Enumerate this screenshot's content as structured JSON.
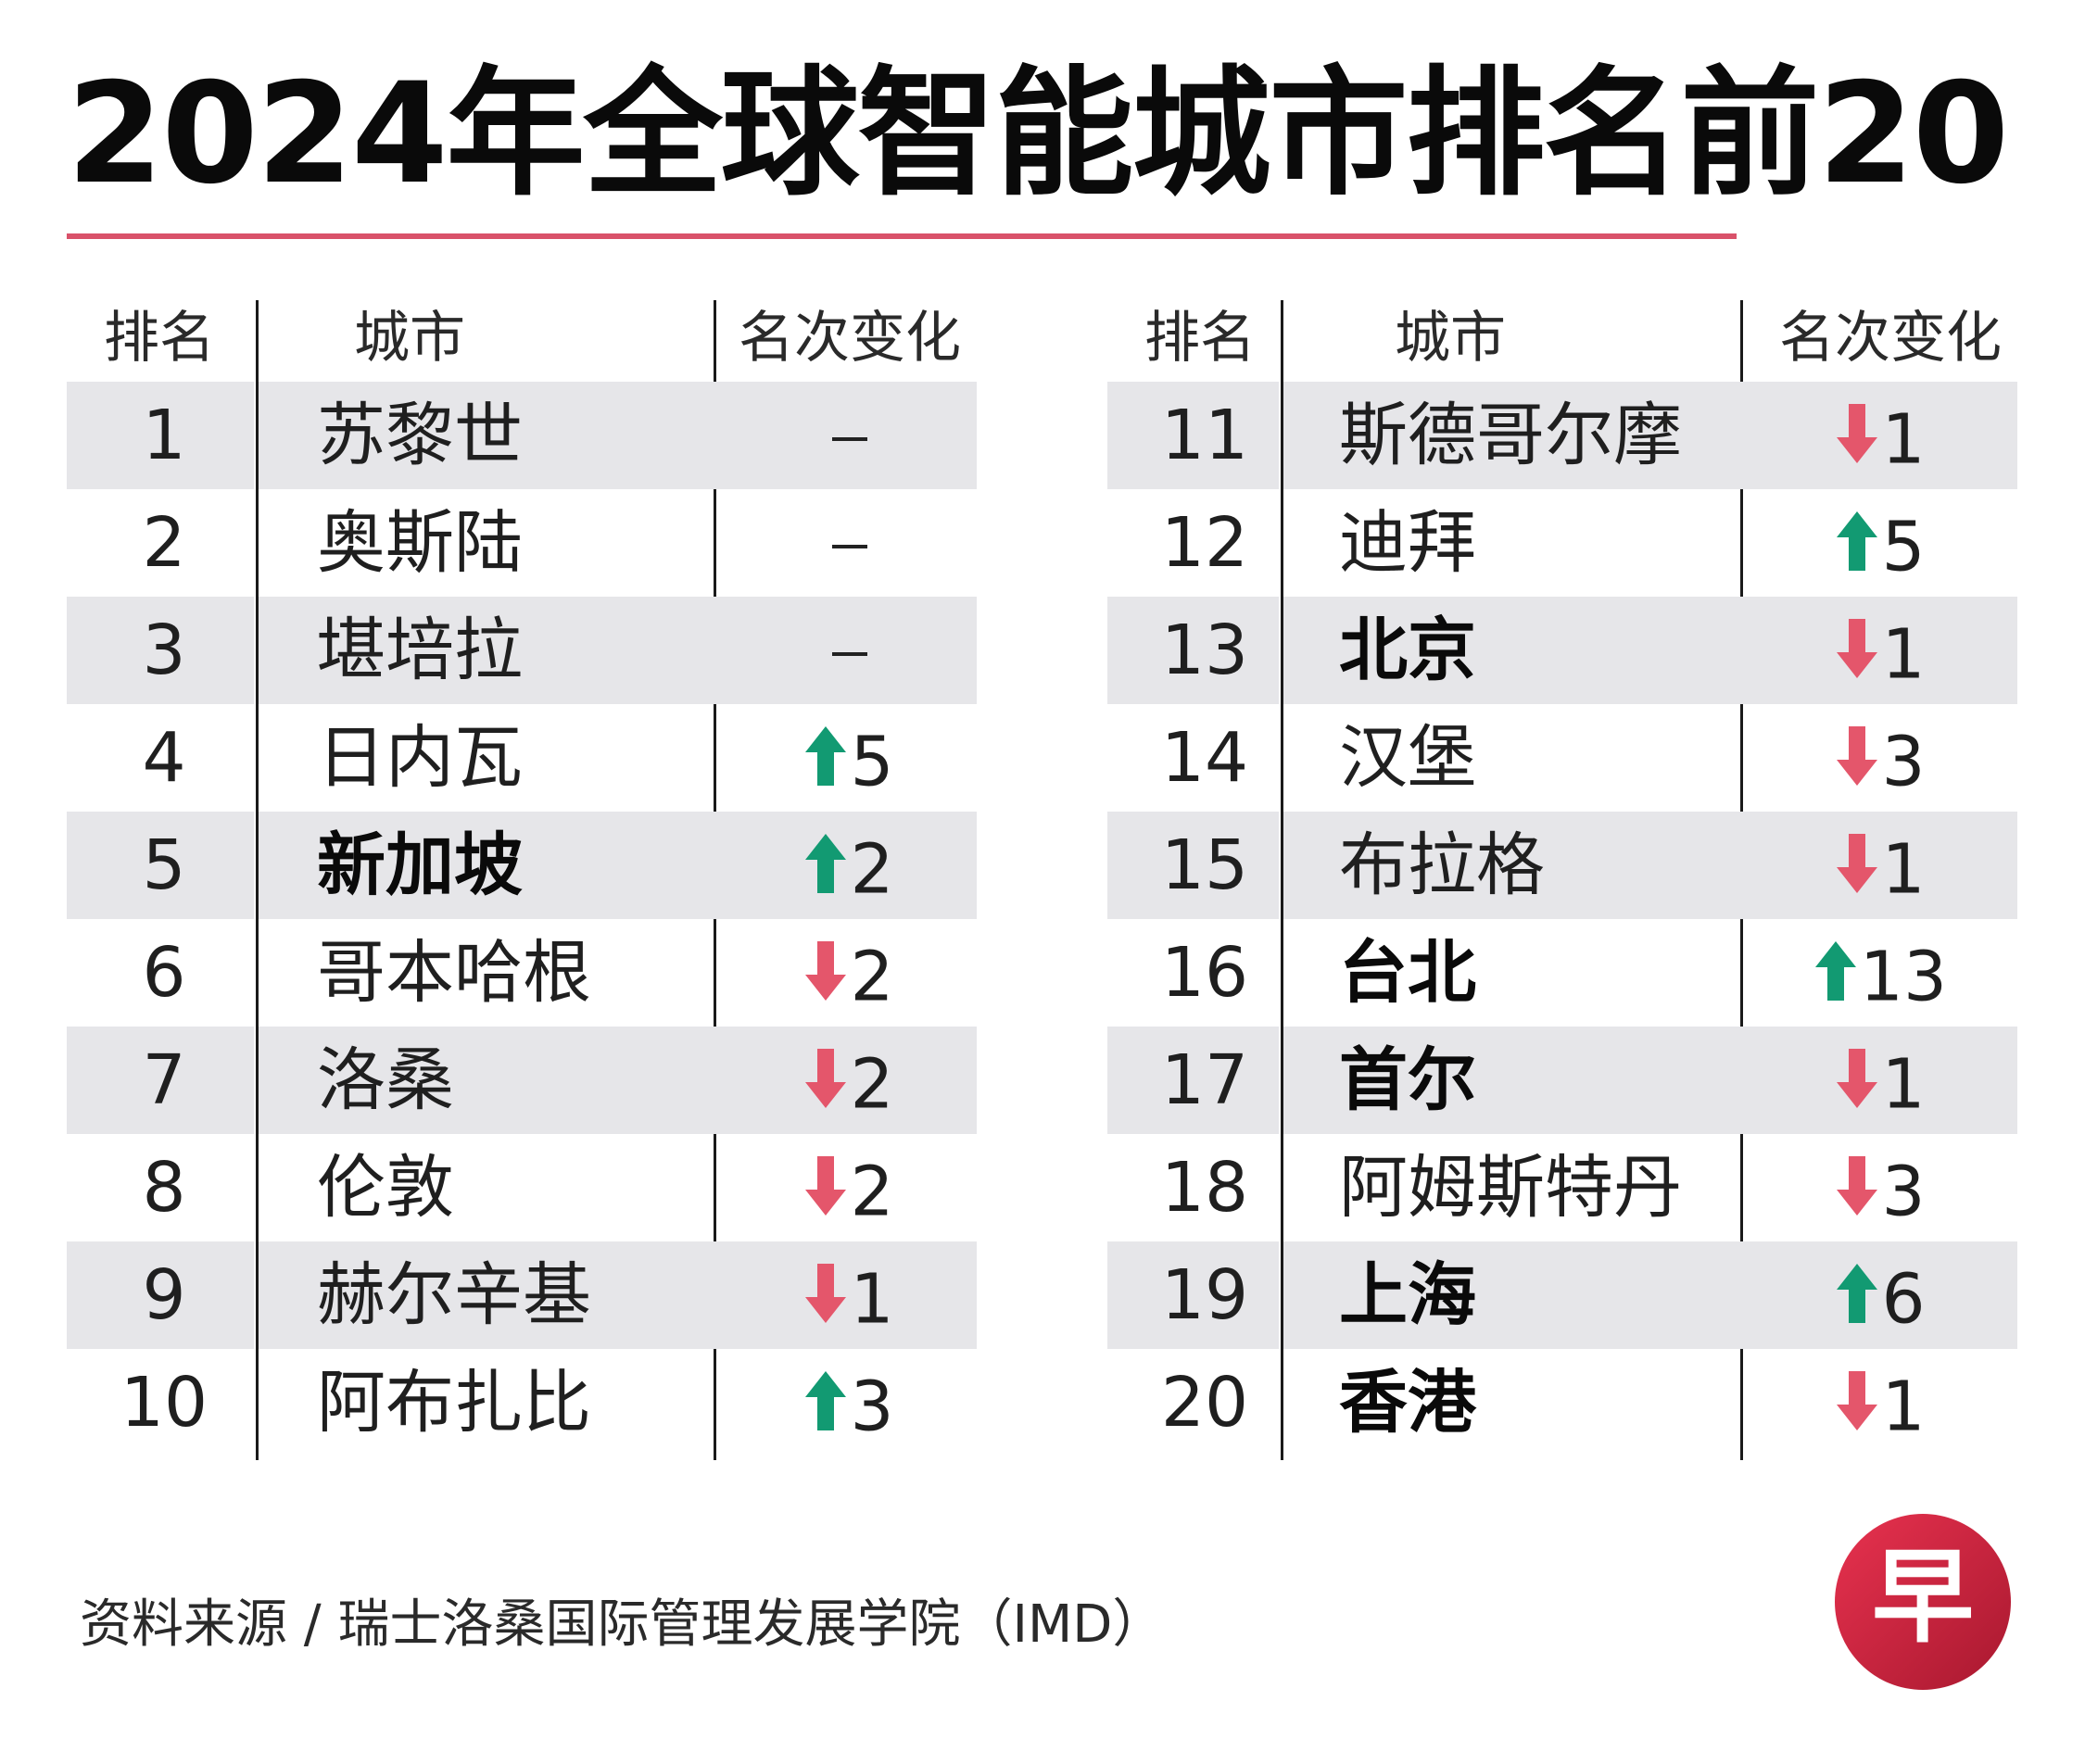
{
  "title": "2024年全球智能城市排名前20",
  "headers": {
    "rank": "排名",
    "city": "城市",
    "change": "名次变化"
  },
  "source": "资料来源 / 瑞士洛桑国际管理发展学院（IMD）",
  "logo_char": "早",
  "colors": {
    "accent": "#d9526a",
    "up": "#129a72",
    "down": "#e4566b",
    "band": "#e6e6e9"
  },
  "chart_data": {
    "type": "table",
    "title": "2024年全球智能城市排名前20",
    "columns": [
      "排名",
      "城市",
      "名次变化"
    ],
    "rows": [
      {
        "rank": "1",
        "city": "苏黎世",
        "bold": false,
        "direction": "none",
        "change": "–"
      },
      {
        "rank": "2",
        "city": "奥斯陆",
        "bold": false,
        "direction": "none",
        "change": "–"
      },
      {
        "rank": "3",
        "city": "堪培拉",
        "bold": false,
        "direction": "none",
        "change": "–"
      },
      {
        "rank": "4",
        "city": "日内瓦",
        "bold": false,
        "direction": "up",
        "change": "5"
      },
      {
        "rank": "5",
        "city": "新加坡",
        "bold": true,
        "direction": "up",
        "change": "2"
      },
      {
        "rank": "6",
        "city": "哥本哈根",
        "bold": false,
        "direction": "down",
        "change": "2"
      },
      {
        "rank": "7",
        "city": "洛桑",
        "bold": false,
        "direction": "down",
        "change": "2"
      },
      {
        "rank": "8",
        "city": "伦敦",
        "bold": false,
        "direction": "down",
        "change": "2"
      },
      {
        "rank": "9",
        "city": "赫尔辛基",
        "bold": false,
        "direction": "down",
        "change": "1"
      },
      {
        "rank": "10",
        "city": "阿布扎比",
        "bold": false,
        "direction": "up",
        "change": "3"
      },
      {
        "rank": "11",
        "city": "斯德哥尔摩",
        "bold": false,
        "direction": "down",
        "change": "1"
      },
      {
        "rank": "12",
        "city": "迪拜",
        "bold": false,
        "direction": "up",
        "change": "5"
      },
      {
        "rank": "13",
        "city": "北京",
        "bold": true,
        "direction": "down",
        "change": "1"
      },
      {
        "rank": "14",
        "city": "汉堡",
        "bold": false,
        "direction": "down",
        "change": "3"
      },
      {
        "rank": "15",
        "city": "布拉格",
        "bold": false,
        "direction": "down",
        "change": "1"
      },
      {
        "rank": "16",
        "city": "台北",
        "bold": true,
        "direction": "up",
        "change": "13"
      },
      {
        "rank": "17",
        "city": "首尔",
        "bold": true,
        "direction": "down",
        "change": "1"
      },
      {
        "rank": "18",
        "city": "阿姆斯特丹",
        "bold": false,
        "direction": "down",
        "change": "3"
      },
      {
        "rank": "19",
        "city": "上海",
        "bold": true,
        "direction": "up",
        "change": "6"
      },
      {
        "rank": "20",
        "city": "香港",
        "bold": true,
        "direction": "down",
        "change": "1"
      }
    ]
  }
}
